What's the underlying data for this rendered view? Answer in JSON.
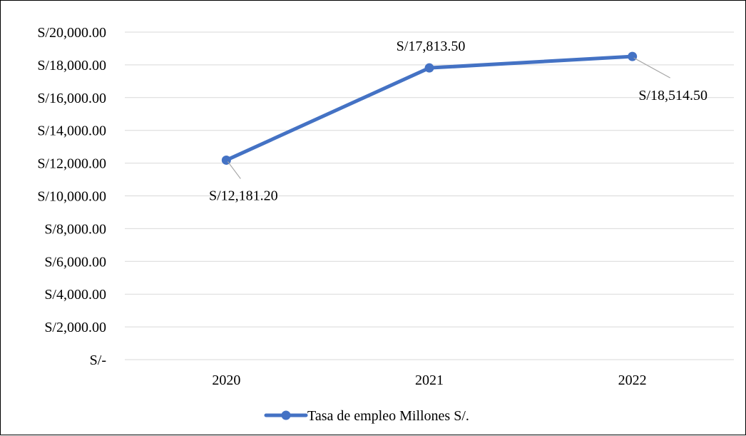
{
  "chart_data": {
    "type": "line",
    "categories": [
      "2020",
      "2021",
      "2022"
    ],
    "series": [
      {
        "name": "Tasa de empleo Millones S/.",
        "values": [
          12181.2,
          17813.5,
          18514.5
        ],
        "color": "#4472C4"
      }
    ],
    "data_labels": [
      "S/12,181.20",
      "S/17,813.50",
      "S/18,514.50"
    ],
    "y_ticks": [
      0,
      2000,
      4000,
      6000,
      8000,
      10000,
      12000,
      14000,
      16000,
      18000,
      20000
    ],
    "y_tick_labels": [
      "S/-",
      "S/2,000.00",
      "S/4,000.00",
      "S/6,000.00",
      "S/8,000.00",
      "S/10,000.00",
      "S/12,000.00",
      "S/14,000.00",
      "S/16,000.00",
      "S/18,000.00",
      "S/20,000.00"
    ],
    "ylim": [
      0,
      20000
    ],
    "grid": true,
    "gridline_color": "#d9d9d9",
    "leader_line_color": "#a6a6a6",
    "legend_position": "bottom",
    "title": "",
    "xlabel": "",
    "ylabel": ""
  }
}
